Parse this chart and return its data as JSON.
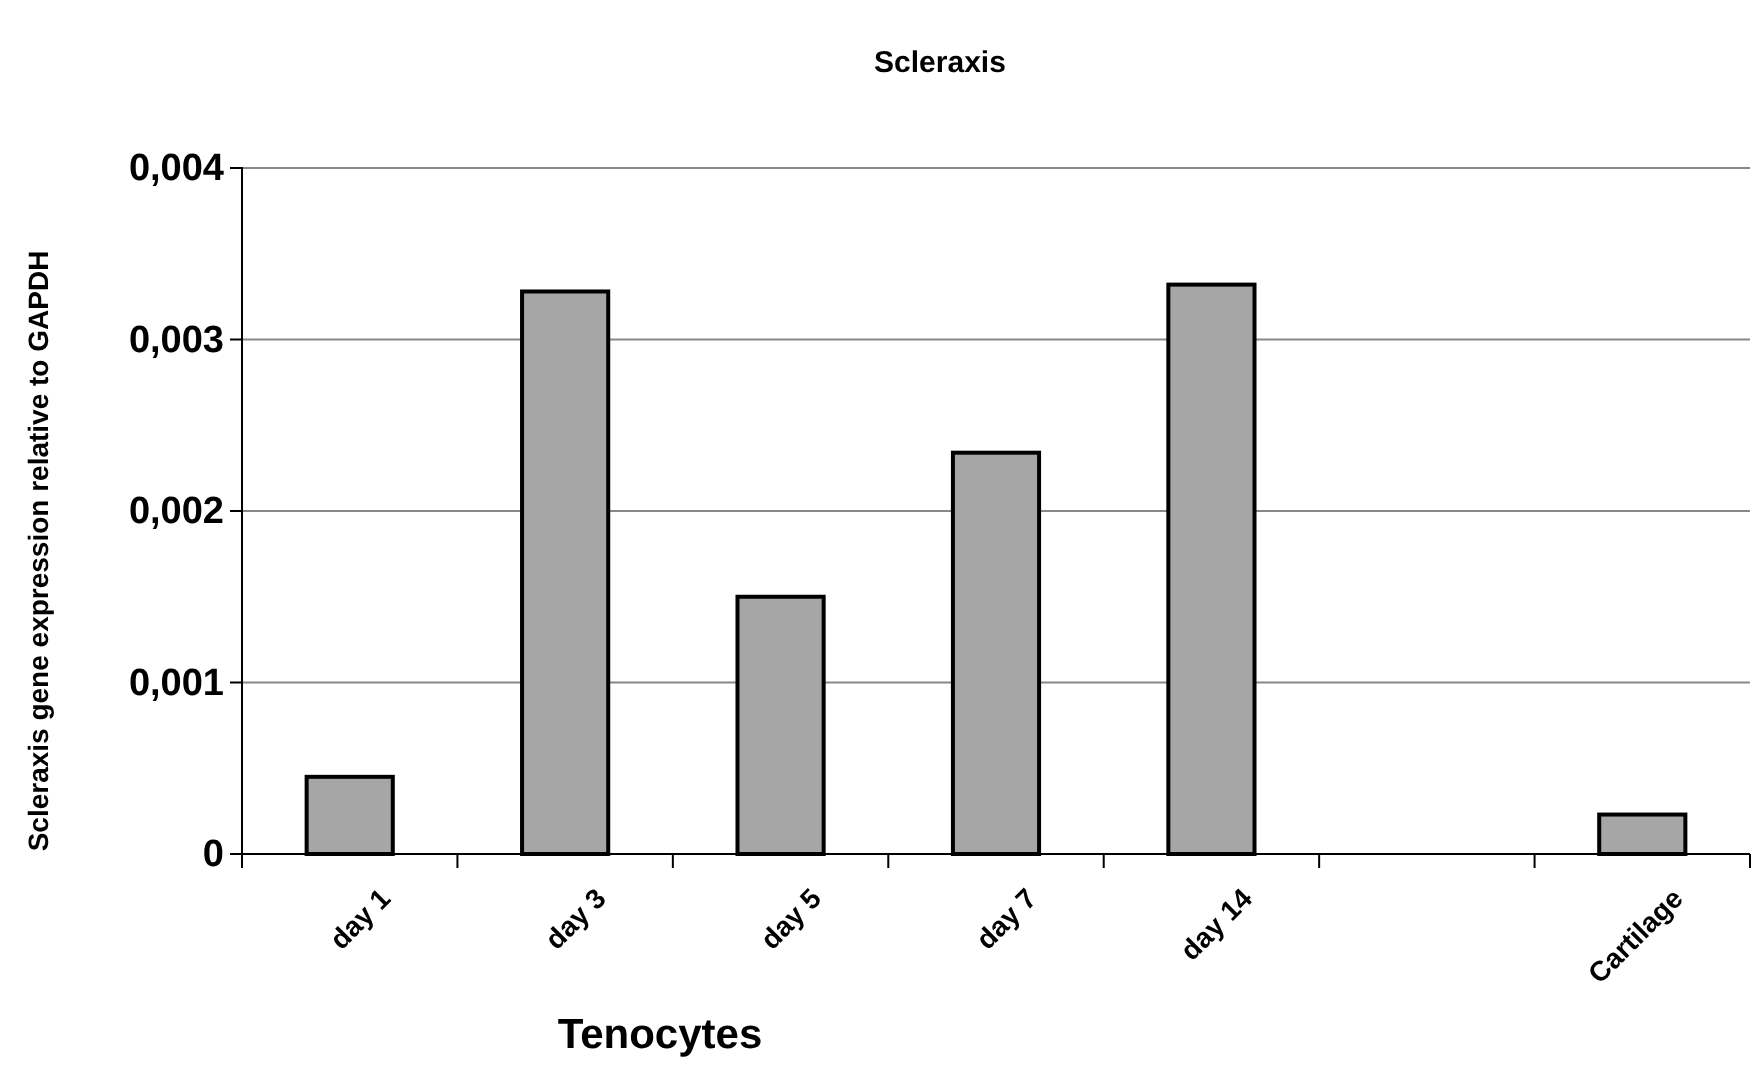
{
  "chart_data": {
    "type": "bar",
    "title": "Scleraxis",
    "xlabel": "Tenocytes",
    "ylabel": "Scleraxis gene expression relative to GAPDH",
    "categories": [
      "day 1",
      "day 3",
      "day 5",
      "day 7",
      "day 14",
      null,
      "Cartilage"
    ],
    "values": [
      0.00045,
      0.00328,
      0.0015,
      0.00234,
      0.00332,
      null,
      0.00023
    ],
    "color": "#a6a6a6",
    "ylim": [
      0,
      0.004
    ],
    "yticks": [
      0,
      {
        "value": 0.001,
        "label": "0,001"
      },
      {
        "value": 0.002,
        "label": "0,002"
      },
      {
        "value": 0.003,
        "label": "0,003"
      },
      {
        "value": 0.004,
        "label": "0,004"
      }
    ],
    "grid": "y"
  }
}
